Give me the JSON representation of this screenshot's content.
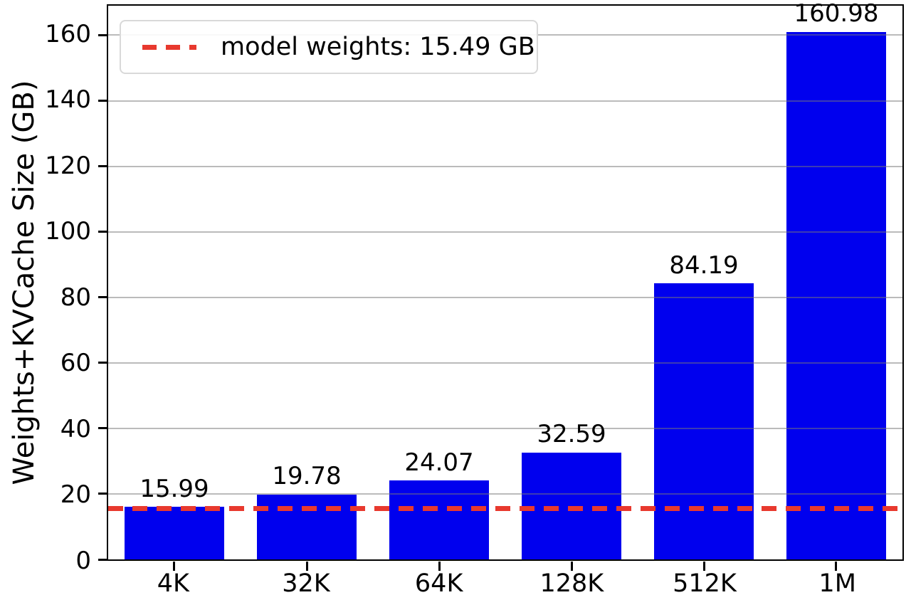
{
  "chart_data": {
    "type": "bar",
    "categories": [
      "4K",
      "32K",
      "64K",
      "128K",
      "512K",
      "1M"
    ],
    "values": [
      15.99,
      19.78,
      24.07,
      32.59,
      84.19,
      160.98
    ],
    "bar_value_labels": [
      "15.99",
      "19.78",
      "24.07",
      "32.59",
      "84.19",
      "160.98"
    ],
    "title": "",
    "xlabel": "",
    "ylabel": "Weights+KVCache Size (GB)",
    "ylim": [
      0,
      169
    ],
    "yticks": [
      0,
      20,
      40,
      60,
      80,
      100,
      120,
      140,
      160
    ],
    "grid": true,
    "grid_axis": "y",
    "legend": {
      "position": "upper-left",
      "entries": [
        {
          "label": "model weights: 15.49 GB",
          "line_style": "dashed",
          "color": "#e8392e"
        }
      ]
    },
    "reference_line": {
      "orientation": "horizontal",
      "value": 15.49,
      "style": "dashed",
      "color": "#e8392e"
    },
    "colors": {
      "bar": "#0000ee",
      "grid": "#b0b0b0",
      "axis": "#000000",
      "text": "#000000",
      "background": "#ffffff"
    }
  }
}
